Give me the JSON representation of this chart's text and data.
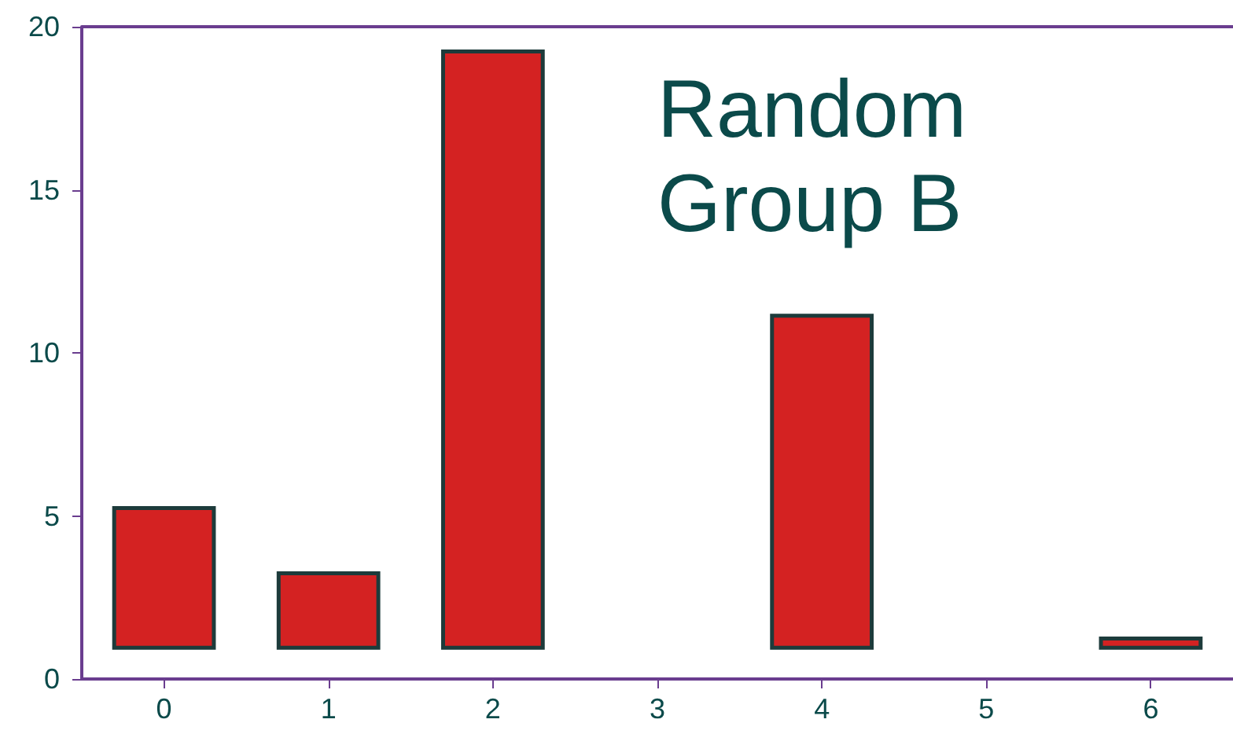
{
  "chart_data": {
    "type": "bar",
    "categories": [
      "0",
      "1",
      "2",
      "3",
      "4",
      "5",
      "6"
    ],
    "values": [
      4.4,
      2.4,
      18.4,
      null,
      10.3,
      null,
      0.4
    ],
    "base": [
      0.9,
      0.9,
      0.9,
      null,
      0.9,
      null,
      0.9
    ],
    "color": "#d42222",
    "ylim": [
      0,
      20
    ],
    "yticks": [
      0,
      5,
      10,
      15,
      20
    ],
    "grid": false,
    "annotations": [
      "Random\nGroup B"
    ]
  }
}
